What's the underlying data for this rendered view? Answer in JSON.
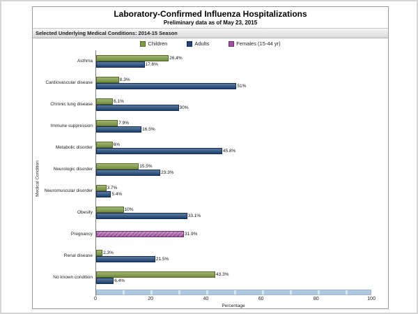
{
  "page": {
    "title": "Laboratory-Confirmed Influenza Hospitalizations",
    "subtitle": "Preliminary data as of May 23, 2015",
    "section_header": "Selected Underlying Medical Conditions: 2014-15 Season"
  },
  "legend": [
    {
      "label": "Children",
      "color": "#7e9c40",
      "border_color": "#55682a"
    },
    {
      "label": "Adults",
      "color": "#1f4879",
      "border_color": "#122c55"
    },
    {
      "label": "Females (15-44 yr)",
      "color": "#a050a0",
      "border_color": "#6e3070"
    }
  ],
  "chart_data": {
    "type": "bar",
    "orientation": "horizontal",
    "title": "Laboratory-Confirmed Influenza Hospitalizations",
    "subtitle": "Preliminary data as of May 23, 2015",
    "xlabel": "Percentage",
    "ylabel": "Medical Condition",
    "xlim": [
      0,
      100
    ],
    "xticks": [
      "0",
      "20",
      "40",
      "60",
      "80",
      "100"
    ],
    "grid": false,
    "legend_position": "top",
    "categories": [
      "Asthma",
      "Cardiovascular disease",
      "Chronic lung disease",
      "Immune suppression",
      "Metabolic disorder",
      "Neurologic disorder",
      "Neuromuscular disorder",
      "Obesity",
      "Pregnancy",
      "Renal disease",
      "No known condition"
    ],
    "series": [
      {
        "name": "Children",
        "color": "#7e9c40",
        "border_color": "#55682a",
        "values": [
          26.4,
          8.3,
          6.1,
          7.9,
          6,
          15.5,
          3.7,
          10,
          null,
          2.3,
          43.3
        ],
        "display": [
          "26.4%",
          "8.3%",
          "6.1%",
          "7.9%",
          "6%",
          "15.5%",
          "3.7%",
          "10%",
          null,
          "2.3%",
          "43.3%"
        ]
      },
      {
        "name": "Adults",
        "color": "#1f4879",
        "border_color": "#122c55",
        "values": [
          17.6,
          51,
          30,
          16.5,
          45.8,
          23.3,
          5.4,
          33.1,
          null,
          21.5,
          6.4
        ],
        "display": [
          "17.6%",
          "51%",
          "30%",
          "16.5%",
          "45.8%",
          "23.3%",
          "5.4%",
          "33.1%",
          null,
          "21.5%",
          "6.4%"
        ]
      },
      {
        "name": "Females (15-44 yr)",
        "color": "#a050a0",
        "border_color": "#6e3070",
        "texture": "hatch",
        "values": [
          null,
          null,
          null,
          null,
          null,
          null,
          null,
          null,
          31.9,
          null,
          null
        ],
        "display": [
          null,
          null,
          null,
          null,
          null,
          null,
          null,
          null,
          "31.9%",
          null,
          null
        ]
      }
    ]
  }
}
